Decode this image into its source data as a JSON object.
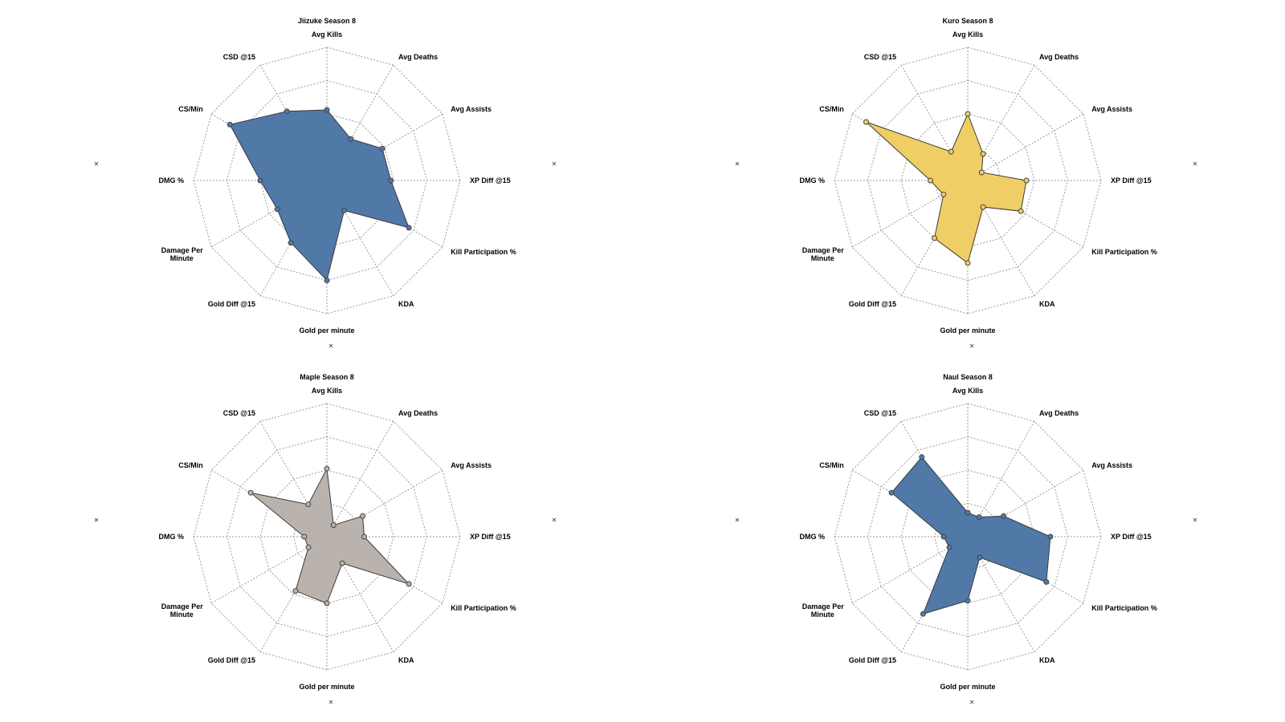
{
  "chart_data": [
    {
      "type": "radar",
      "title": "Jiizuke Season 8",
      "axes": [
        "Avg Kills",
        "Avg Deaths",
        "Avg Assists",
        "XP Diff @15",
        "Kill Participation %",
        "KDA",
        "Gold per minute",
        "Gold Diff @15",
        "Damage Per Minute",
        "DMG %",
        "CS/Min",
        "CSD @15"
      ],
      "values": [
        0.53,
        0.36,
        0.48,
        0.48,
        0.71,
        0.26,
        0.75,
        0.54,
        0.43,
        0.5,
        0.84,
        0.6
      ],
      "fill": "#5079a8",
      "max": 1,
      "rings": 4,
      "grid": true,
      "corner_marks": [
        "✕",
        "✕",
        "✕"
      ]
    },
    {
      "type": "radar",
      "title": "Kuro Season 8",
      "axes": [
        "Avg Kills",
        "Avg Deaths",
        "Avg Assists",
        "XP Diff @15",
        "Kill Participation %",
        "KDA",
        "Gold per minute",
        "Gold Diff @15",
        "Damage Per Minute",
        "DMG %",
        "CS/Min",
        "CSD @15"
      ],
      "values": [
        0.5,
        0.23,
        0.12,
        0.44,
        0.46,
        0.23,
        0.62,
        0.5,
        0.21,
        0.28,
        0.88,
        0.25
      ],
      "fill": "#f0ce66",
      "max": 1,
      "rings": 4,
      "grid": true,
      "corner_marks": [
        "✕",
        "✕",
        "✕"
      ]
    },
    {
      "type": "radar",
      "title": "Maple Season 8",
      "axes": [
        "Avg Kills",
        "Avg Deaths",
        "Avg Assists",
        "XP Diff @15",
        "Kill Participation %",
        "KDA",
        "Gold per minute",
        "Gold Diff @15",
        "Damage Per Minute",
        "DMG %",
        "CS/Min",
        "CSD @15"
      ],
      "values": [
        0.51,
        0.1,
        0.31,
        0.28,
        0.71,
        0.23,
        0.5,
        0.47,
        0.16,
        0.17,
        0.66,
        0.28
      ],
      "fill": "#bab3ad",
      "max": 1,
      "rings": 4,
      "grid": true,
      "corner_marks": [
        "✕",
        "✕",
        "✕"
      ]
    },
    {
      "type": "radar",
      "title": "Naul Season 8",
      "axes": [
        "Avg Kills",
        "Avg Deaths",
        "Avg Assists",
        "XP Diff @15",
        "Kill Participation %",
        "KDA",
        "Gold per minute",
        "Gold Diff @15",
        "Damage Per Minute",
        "DMG %",
        "CS/Min",
        "CSD @15"
      ],
      "values": [
        0.18,
        0.17,
        0.31,
        0.62,
        0.68,
        0.18,
        0.48,
        0.67,
        0.16,
        0.18,
        0.66,
        0.69
      ],
      "fill": "#5079a8",
      "max": 1,
      "rings": 4,
      "grid": true,
      "corner_marks": [
        "✕",
        "✕",
        "✕"
      ]
    }
  ]
}
